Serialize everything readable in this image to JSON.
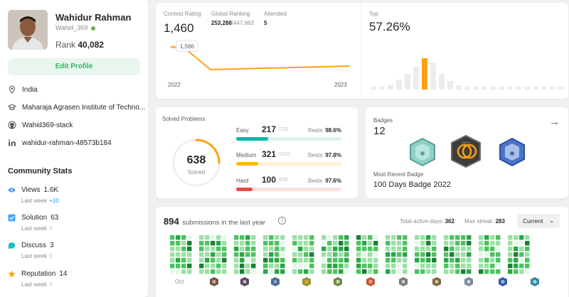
{
  "profile": {
    "name": "Wahidur Rahman",
    "username": "Wahid_369",
    "rank_label": "Rank",
    "rank_value": "40,082",
    "edit_label": "Edit Profile",
    "location": "India",
    "institute": "Maharaja Agrasen Institute of Techno...",
    "github": "Wahid369-stack",
    "linkedin": "wahidur-rahman-48573b184"
  },
  "community": {
    "title": "Community Stats",
    "stats": [
      {
        "label": "Views",
        "value": "1.6K",
        "sub": "Last week",
        "delta": "+10",
        "color": "#1a90ff"
      },
      {
        "label": "Solution",
        "value": "63",
        "sub": "Last week",
        "delta": "0",
        "color": "#40a9ff"
      },
      {
        "label": "Discuss",
        "value": "3",
        "sub": "Last week",
        "delta": "0",
        "color": "#13c2c2"
      },
      {
        "label": "Reputation",
        "value": "14",
        "sub": "Last week",
        "delta": "0",
        "color": "#ffa116"
      }
    ]
  },
  "contest": {
    "rating_label": "Contest Rating",
    "rating_value": "1,460",
    "global_label": "Global Ranking",
    "global_value": "253,288",
    "global_total": "/447,863",
    "attended_label": "Attended",
    "attended_value": "5",
    "tooltip_value": "1,566",
    "x_start": "2022",
    "x_end": "2023",
    "top_label": "Top",
    "top_value": "57.26%",
    "line_color": "#ffa116"
  },
  "solved": {
    "title": "Solved Problems",
    "total": "638",
    "total_label": "Solved",
    "beats_label": "Beats",
    "difficulties": [
      {
        "name": "Easy",
        "solved": 217,
        "total": "/720",
        "beats": "98.6%",
        "color": "#00b8a3",
        "track": "#d9f3ef"
      },
      {
        "name": "Medium",
        "solved": 321,
        "total": "/1521",
        "beats": "97.8%",
        "color": "#ffb800",
        "track": "#fff3d6"
      },
      {
        "name": "Hard",
        "solved": 100,
        "total": "/635",
        "beats": "97.6%",
        "color": "#ef4743",
        "track": "#fce1e1"
      }
    ]
  },
  "badges": {
    "label": "Badges",
    "count": "12",
    "recent_label": "Most Recent Badge",
    "recent_name": "100 Days Badge 2022"
  },
  "submissions": {
    "count": "894",
    "text": "submissions in the last year",
    "info_icon": "i",
    "active_days_label": "Total active days:",
    "active_days_value": "362",
    "max_streak_label": "Max streak:",
    "max_streak_value": "283",
    "selector": "Current",
    "first_month": "Oct"
  }
}
